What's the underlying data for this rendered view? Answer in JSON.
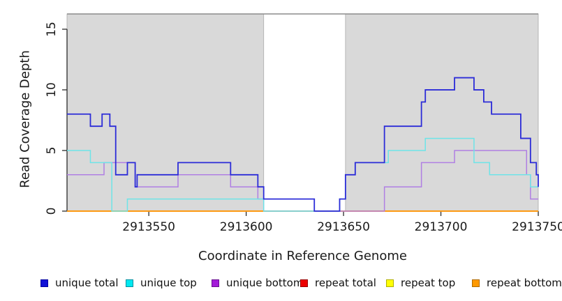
{
  "chart_data": {
    "type": "line",
    "subtype": "step",
    "title": "",
    "xlabel": "Coordinate in Reference Genome",
    "ylabel": "Read Coverage Depth",
    "xlim": [
      2913508,
      2913750
    ],
    "ylim": [
      0,
      16.26
    ],
    "x_ticks": [
      2913550,
      2913600,
      2913650,
      2913700,
      2913750
    ],
    "x_tick_labels": [
      "2913550",
      "2913600",
      "2913650",
      "2913700",
      "2913750"
    ],
    "y_ticks": [
      0,
      5,
      10,
      15
    ],
    "y_tick_labels": [
      "0",
      "5",
      "10",
      "15"
    ],
    "grid": false,
    "legend_position": "bottom",
    "plot_bg": "#ffffff",
    "axis_color": "#2b2b2b",
    "border_top_color": "#8c8c8c",
    "band_border_color": "#ababab",
    "shaded_bands": [
      {
        "x_from": 2913508,
        "x_to": 2913609,
        "color": "#d9d9d9"
      },
      {
        "x_from": 2913651,
        "x_to": 2913750,
        "color": "#d9d9d9"
      }
    ],
    "series": [
      {
        "name": "unique total",
        "line_color": "#2c2cd8",
        "swatch_fill": "#1111d6",
        "swatch_border": "#0000a0",
        "step_points": [
          [
            2913508,
            8
          ],
          [
            2913520,
            7
          ],
          [
            2913526,
            8
          ],
          [
            2913530,
            7
          ],
          [
            2913533,
            3
          ],
          [
            2913539,
            4
          ],
          [
            2913543,
            2
          ],
          [
            2913544,
            3
          ],
          [
            2913565,
            4
          ],
          [
            2913592,
            3
          ],
          [
            2913606,
            2
          ],
          [
            2913609,
            1
          ],
          [
            2913635,
            0
          ],
          [
            2913648,
            1
          ],
          [
            2913651,
            3
          ],
          [
            2913656,
            4
          ],
          [
            2913671,
            7
          ],
          [
            2913690,
            9
          ],
          [
            2913692,
            10
          ],
          [
            2913707,
            11
          ],
          [
            2913717,
            10
          ],
          [
            2913722,
            9
          ],
          [
            2913726,
            8
          ],
          [
            2913741,
            6
          ],
          [
            2913746,
            4
          ],
          [
            2913749,
            3
          ],
          [
            2913750,
            2
          ]
        ]
      },
      {
        "name": "unique top",
        "line_color": "#6ee4e8",
        "swatch_fill": "#00e8f0",
        "swatch_border": "#0090a0",
        "step_points": [
          [
            2913508,
            5
          ],
          [
            2913520,
            4
          ],
          [
            2913531,
            0
          ],
          [
            2913539,
            1
          ],
          [
            2913609,
            0
          ],
          [
            2913648,
            1
          ],
          [
            2913651,
            3
          ],
          [
            2913656,
            4
          ],
          [
            2913673,
            5
          ],
          [
            2913692,
            6
          ],
          [
            2913717,
            4
          ],
          [
            2913725,
            3
          ],
          [
            2913746,
            2
          ],
          [
            2913750,
            2
          ]
        ]
      },
      {
        "name": "unique bottom",
        "line_color": "#b07fe3",
        "swatch_fill": "#a31bd8",
        "swatch_border": "#6a0f92",
        "step_points": [
          [
            2913508,
            3
          ],
          [
            2913527,
            4
          ],
          [
            2913543,
            2
          ],
          [
            2913565,
            3
          ],
          [
            2913592,
            2
          ],
          [
            2913606,
            1
          ],
          [
            2913609,
            0
          ],
          [
            2913671,
            2
          ],
          [
            2913690,
            4
          ],
          [
            2913707,
            5
          ],
          [
            2913744,
            3
          ],
          [
            2913746,
            1
          ],
          [
            2913750,
            1
          ]
        ]
      },
      {
        "name": "repeat total",
        "line_color": "#e60000",
        "swatch_fill": "#ec0000",
        "swatch_border": "#980000",
        "step_points": [
          [
            2913508,
            0
          ],
          [
            2913750,
            0
          ]
        ]
      },
      {
        "name": "repeat top",
        "line_color": "#ffff00",
        "swatch_fill": "#ffff05",
        "swatch_border": "#b0b000",
        "step_points": [
          [
            2913508,
            0
          ],
          [
            2913750,
            0
          ]
        ]
      },
      {
        "name": "repeat bottom",
        "line_color": "#ff9a12",
        "swatch_fill": "#ff9900",
        "swatch_border": "#b06a00",
        "step_points": [
          [
            2913508,
            0
          ],
          [
            2913750,
            0
          ]
        ]
      }
    ]
  }
}
